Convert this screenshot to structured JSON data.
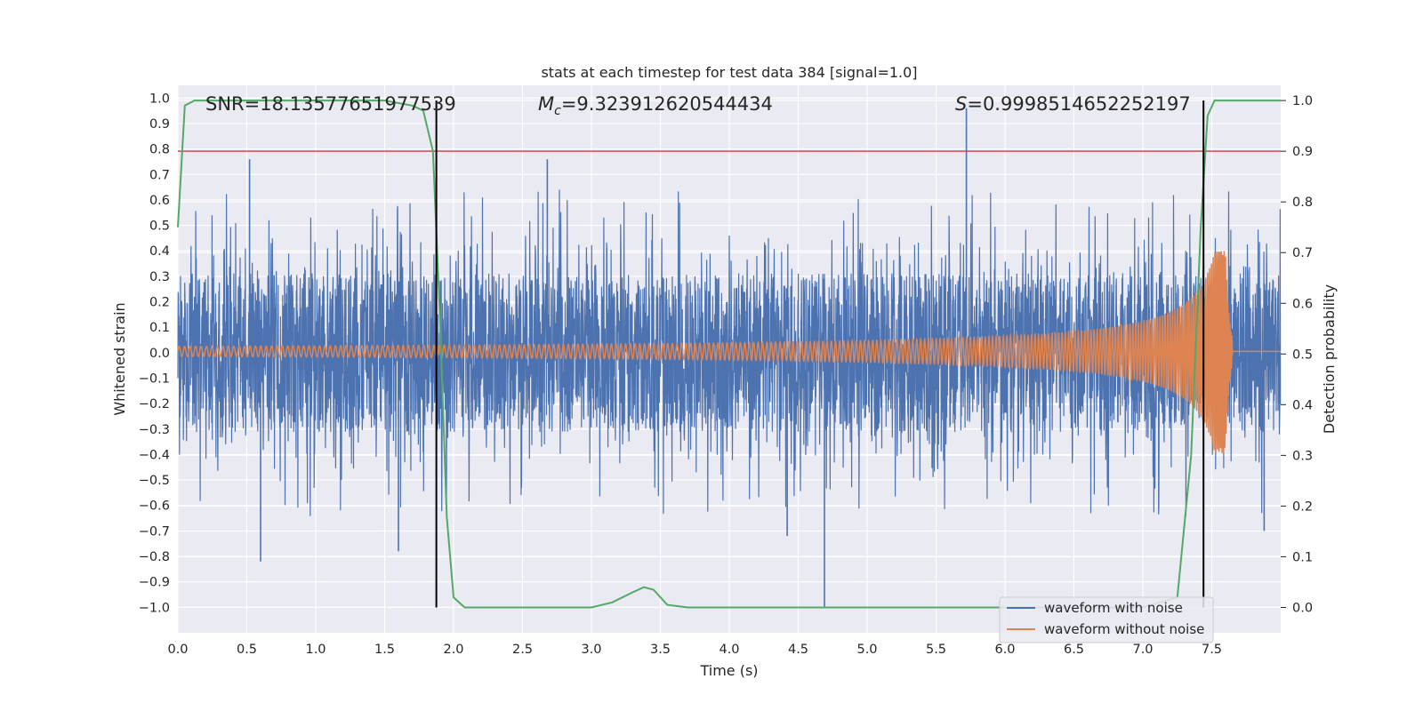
{
  "chart_data": {
    "type": "line",
    "title": "stats at each timestep for test data 384 [signal=1.0]",
    "xlabel": "Time (s)",
    "ylabel": "Whitened strain",
    "y2label": "Detection probability",
    "xlim": [
      0.0,
      8.0
    ],
    "ylim": [
      -1.1,
      1.05
    ],
    "y2lim": [
      -0.05,
      1.03
    ],
    "x_ticks": [
      "0.0",
      "0.5",
      "1.0",
      "1.5",
      "2.0",
      "2.5",
      "3.0",
      "3.5",
      "4.0",
      "4.5",
      "5.0",
      "5.5",
      "6.0",
      "6.5",
      "7.0",
      "7.5"
    ],
    "y_ticks": [
      "1.0",
      "0.9",
      "0.8",
      "0.7",
      "0.6",
      "0.5",
      "0.4",
      "0.3",
      "0.2",
      "0.1",
      "0.0",
      "−0.1",
      "−0.2",
      "−0.3",
      "−0.4",
      "−0.5",
      "−0.6",
      "−0.7",
      "−0.8",
      "−0.9",
      "−1.0"
    ],
    "y2_ticks": [
      "1.0",
      "0.9",
      "0.8",
      "0.7",
      "0.6",
      "0.5",
      "0.4",
      "0.3",
      "0.2",
      "0.1",
      "0.0"
    ],
    "annotations": {
      "snr": "SNR=18.13577651977539",
      "mc_symbol": "M",
      "mc_sub": "c",
      "mc_value": "=9.323912620544434",
      "s_symbol": "S",
      "s_value": "=0.9998514652252197"
    },
    "threshold": {
      "value": 0.9,
      "axis": "right",
      "color": "#c44e52"
    },
    "vlines": [
      1.875,
      7.44
    ],
    "legend": {
      "location": "lower-right",
      "entries": [
        "waveform with noise",
        "waveform without noise"
      ]
    },
    "series": [
      {
        "name": "waveform with noise",
        "color": "#4c72b0",
        "axis": "left",
        "description": "noisy whitened strain, roughly within ±0.45 with spikes",
        "spikes": [
          [
            0.52,
            0.76
          ],
          [
            0.6,
            -0.82
          ],
          [
            1.6,
            -0.78
          ],
          [
            2.68,
            0.76
          ],
          [
            4.69,
            -1.0
          ],
          [
            4.42,
            -0.72
          ],
          [
            5.72,
            0.96
          ],
          [
            7.88,
            -0.7
          ]
        ]
      },
      {
        "name": "waveform without noise",
        "color": "#dd8452",
        "axis": "left",
        "description": "inspiral chirp, amplitude ~0.02 growing to ~0.4 near merger at 7.6 s",
        "merger_time": 7.6,
        "peak_amplitude": 0.4
      },
      {
        "name": "detection probability",
        "color": "#55a868",
        "axis": "right",
        "x": [
          0.0,
          0.05,
          0.12,
          0.2,
          0.5,
          1.0,
          1.5,
          1.7,
          1.78,
          1.85,
          1.9,
          1.95,
          2.0,
          2.08,
          2.2,
          2.5,
          3.0,
          3.15,
          3.3,
          3.38,
          3.45,
          3.55,
          3.7,
          4.0,
          5.0,
          6.0,
          7.0,
          7.25,
          7.35,
          7.42,
          7.47,
          7.52,
          7.6,
          8.0
        ],
        "y": [
          0.75,
          0.99,
          1.0,
          1.0,
          1.0,
          1.0,
          1.0,
          0.99,
          0.98,
          0.9,
          0.58,
          0.18,
          0.02,
          0.0,
          0.0,
          0.0,
          0.0,
          0.01,
          0.03,
          0.04,
          0.035,
          0.005,
          0.0,
          0.0,
          0.0,
          0.0,
          0.0,
          0.02,
          0.3,
          0.75,
          0.97,
          1.0,
          1.0,
          1.0
        ]
      }
    ]
  }
}
